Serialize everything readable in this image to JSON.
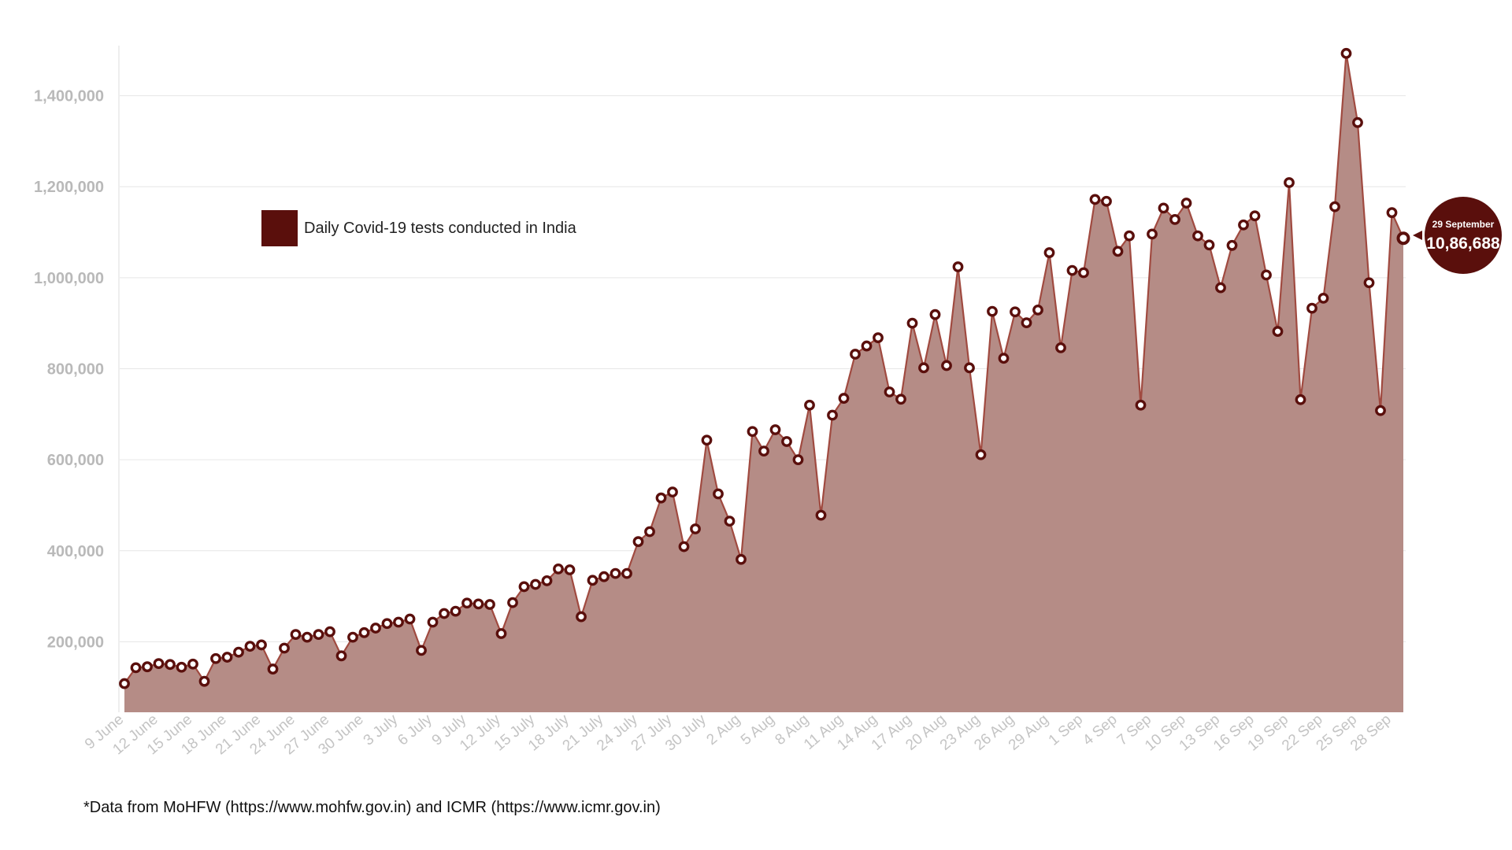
{
  "chart_data": {
    "type": "area",
    "series": [
      {
        "name": "Daily Covid-19 tests conducted in India",
        "values": [
          108000,
          143000,
          145000,
          152000,
          150000,
          144000,
          151000,
          113000,
          163000,
          166000,
          177000,
          190000,
          193000,
          140000,
          186000,
          216000,
          210000,
          216000,
          222000,
          169000,
          210000,
          220000,
          230000,
          240000,
          243000,
          250000,
          181000,
          243000,
          262000,
          267000,
          285000,
          283000,
          282000,
          218000,
          286000,
          321000,
          326000,
          334000,
          360000,
          358000,
          255000,
          335000,
          343000,
          350000,
          350000,
          420000,
          442000,
          516000,
          529000,
          409000,
          448000,
          643000,
          525000,
          465000,
          381000,
          662000,
          619000,
          666000,
          640000,
          600000,
          720000,
          478000,
          698000,
          735000,
          832000,
          850000,
          868000,
          749000,
          733000,
          900000,
          802000,
          919000,
          807000,
          1024000,
          802000,
          611000,
          926000,
          823000,
          925000,
          901000,
          929000,
          1055000,
          846000,
          1016000,
          1011000,
          1172000,
          1168000,
          1058000,
          1092000,
          720000,
          1096000,
          1153000,
          1128000,
          1164000,
          1092000,
          1072000,
          978000,
          1071000,
          1116000,
          1136000,
          1006000,
          882000,
          1209000,
          732000,
          933000,
          955000,
          1156000,
          1493000,
          1341000,
          989000,
          708000,
          1143000,
          1086688
        ]
      }
    ],
    "x_tick_labels": [
      "9 June",
      "12 June",
      "15 June",
      "18 June",
      "21 June",
      "24 June",
      "27 June",
      "30 June",
      "3 July",
      "6 July",
      "9 July",
      "12 July",
      "15 July",
      "18 July",
      "21 July",
      "24 July",
      "27 July",
      "30 July",
      "2 Aug",
      "5 Aug",
      "8 Aug",
      "11 Aug",
      "14 Aug",
      "17 Aug",
      "20 Aug",
      "23 Aug",
      "26 Aug",
      "29 Aug",
      "1 Sep",
      "4 Sep",
      "7 Sep",
      "10 Sep",
      "13 Sep",
      "16 Sep",
      "19 Sep",
      "22 Sep",
      "25 Sep",
      "28 Sep"
    ],
    "y_tick_labels": [
      "200,000",
      "400,000",
      "600,000",
      "800,000",
      "1,000,000",
      "1,200,000",
      "1,400,000"
    ],
    "y_ticks": [
      200000,
      400000,
      600000,
      800000,
      1000000,
      1200000,
      1400000
    ],
    "ylim": [
      45000,
      1510000
    ],
    "grid": true,
    "legend": {
      "label": "Daily Covid-19 tests conducted in India",
      "position": "top-left"
    },
    "callout": {
      "date": "29 September",
      "value": "10,86,688"
    },
    "colors": {
      "area": "#b58c86",
      "line": "#a04a40",
      "marker": "#5a0f0c",
      "callout": "#5a0f0c",
      "grid": "#e6e6e6"
    }
  },
  "footnote": "*Data from MoHFW (https://www.mohfw.gov.in) and ICMR (https://www.icmr.gov.in)"
}
